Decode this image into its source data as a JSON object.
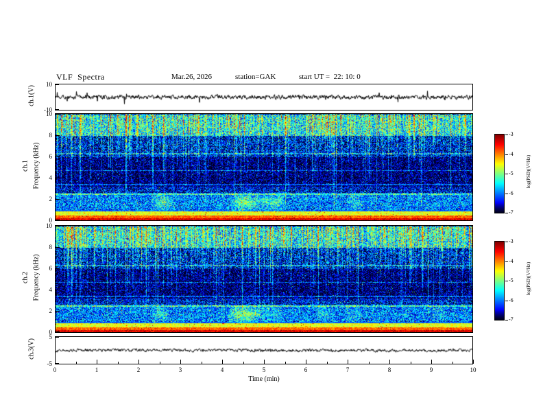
{
  "header": {
    "title": "VLF  Spectra",
    "date": "Mar.26, 2026",
    "station": "station=GAK",
    "start_ut": "start UT =  22: 10: 0"
  },
  "xaxis": {
    "label": "Time (min)",
    "lim": [
      0,
      10
    ],
    "ticks": [
      0,
      1,
      2,
      3,
      4,
      5,
      6,
      7,
      8,
      9,
      10
    ]
  },
  "colorbar": {
    "label": "log(PSD)(V²/Hz)",
    "ticks": [
      -3,
      -4,
      -5,
      -6,
      -7
    ],
    "lim": [
      -7,
      -3
    ]
  },
  "chart_data": [
    {
      "id": "ch1-waveform",
      "type": "line",
      "ylabel": "ch.1(V)",
      "xlim": [
        0,
        10
      ],
      "ylim": [
        -10,
        10
      ],
      "yticks": [
        10,
        -10
      ],
      "signal": {
        "mean_V": 0,
        "noise_amp_V": 1.3,
        "spike_amp_V": 4.5,
        "spike_rate": 0.03,
        "seed": 1101
      }
    },
    {
      "id": "ch1-spectrogram",
      "type": "heatmap",
      "channel": "ch.1",
      "ylabel": "Frequency (kHz)",
      "xlim": [
        0,
        10
      ],
      "ylim": [
        0,
        10
      ],
      "yticks": [
        0,
        2,
        4,
        6,
        8,
        10
      ],
      "zlim": [
        -7,
        -3
      ],
      "bands": [
        {
          "f": [
            0.0,
            0.2
          ],
          "level": -3.4
        },
        {
          "f": [
            0.2,
            0.5
          ],
          "level": -3.9
        },
        {
          "f": [
            0.5,
            0.85
          ],
          "level": -4.6
        },
        {
          "f": [
            0.85,
            1.05
          ],
          "level": -6.1
        },
        {
          "f": [
            1.05,
            2.6
          ],
          "level": -6.0
        },
        {
          "f": [
            2.6,
            3.2
          ],
          "level": -6.5
        },
        {
          "f": [
            3.2,
            6.0
          ],
          "level": -6.85
        },
        {
          "f": [
            6.0,
            8.0
          ],
          "level": -6.5
        },
        {
          "f": [
            8.0,
            10.0
          ],
          "level": -5.6
        }
      ],
      "hum_lines_khz": [
        2.5,
        3.4,
        4.7,
        6.3
      ],
      "seed": 20260326
    },
    {
      "id": "ch2-spectrogram",
      "type": "heatmap",
      "channel": "ch.2",
      "ylabel": "Frequency (kHz)",
      "xlim": [
        0,
        10
      ],
      "ylim": [
        0,
        10
      ],
      "yticks": [
        0,
        2,
        4,
        6,
        8,
        10
      ],
      "zlim": [
        -7,
        -3
      ],
      "bands": [
        {
          "f": [
            0.0,
            0.2
          ],
          "level": -3.4
        },
        {
          "f": [
            0.2,
            0.5
          ],
          "level": -3.9
        },
        {
          "f": [
            0.5,
            0.85
          ],
          "level": -4.6
        },
        {
          "f": [
            0.85,
            1.05
          ],
          "level": -6.1
        },
        {
          "f": [
            1.05,
            2.6
          ],
          "level": -6.0
        },
        {
          "f": [
            2.6,
            3.2
          ],
          "level": -6.5
        },
        {
          "f": [
            3.2,
            6.0
          ],
          "level": -6.85
        },
        {
          "f": [
            6.0,
            8.0
          ],
          "level": -6.5
        },
        {
          "f": [
            8.0,
            10.0
          ],
          "level": -5.6
        }
      ],
      "hum_lines_khz": [
        2.5,
        3.4,
        4.7,
        6.3
      ],
      "seed": 20260327
    },
    {
      "id": "ch3-waveform",
      "type": "line",
      "ylabel": "ch.3(V)",
      "xlim": [
        0,
        10
      ],
      "ylim": [
        -5,
        5
      ],
      "yticks": [
        5,
        -5
      ],
      "signal": {
        "mean_V": 0,
        "noise_amp_V": 0.45,
        "spike_amp_V": 0,
        "spike_rate": 0,
        "seed": 3303
      }
    }
  ]
}
